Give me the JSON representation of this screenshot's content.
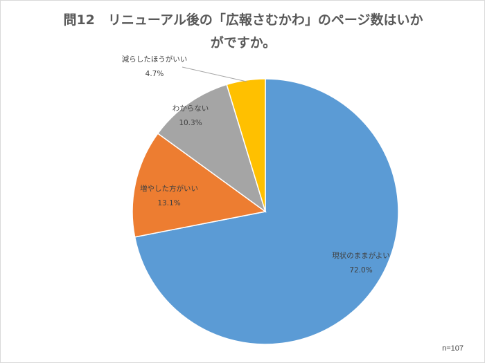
{
  "chart_data": {
    "type": "pie",
    "title_lines": [
      "問12　リニューアル後の「広報さむかわ」のページ数はいか",
      "がですか。"
    ],
    "slices": [
      {
        "label": "現状のままがよい",
        "value": 72.0,
        "value_text": "72.0%",
        "color": "#5B9BD5"
      },
      {
        "label": "増やした方がいい",
        "value": 13.1,
        "value_text": "13.1%",
        "color": "#ED7D31"
      },
      {
        "label": "わからない",
        "value": 10.3,
        "value_text": "10.3%",
        "color": "#A5A5A5"
      },
      {
        "label": "減らしたほうがいい",
        "value": 4.7,
        "value_text": "4.7%",
        "color": "#FFC000"
      }
    ],
    "start": "12 o'clock",
    "direction": "clockwise",
    "legend": "none",
    "note": "n=107"
  }
}
